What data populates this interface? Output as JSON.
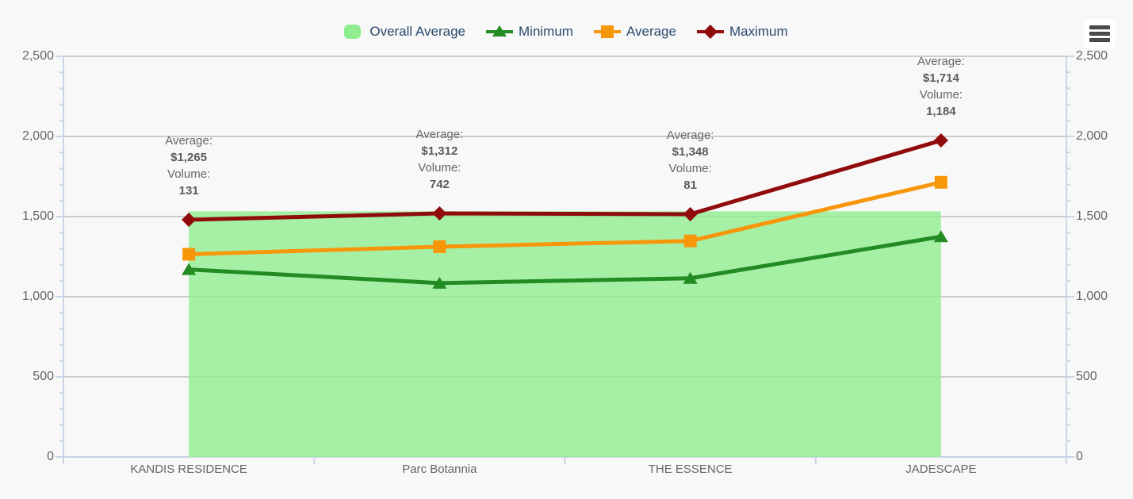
{
  "chart": {
    "legend": [
      {
        "label": "Overall Average",
        "marker": "rounded-square",
        "color": "#90EE90"
      },
      {
        "label": "Minimum",
        "marker": "triangle-line",
        "color": "#228B22"
      },
      {
        "label": "Average",
        "marker": "square-line",
        "color": "#F8960A"
      },
      {
        "label": "Maximum",
        "marker": "diamond-line",
        "color": "#900C0C"
      }
    ],
    "menu_icon": "hamburger-menu-icon",
    "colors": {
      "background": "#f8f8f8",
      "gridline": "#cbcbcb",
      "axis": "#c9d4e7",
      "axis_label": "#666666",
      "legend_text": "#274a6d",
      "annotation_text": "#666666"
    }
  },
  "chart_data": {
    "type": "line",
    "title": "",
    "categories": [
      "KANDIS RESIDENCE",
      "Parc Botannia",
      "THE ESSENCE",
      "JADESCAPE"
    ],
    "series": [
      {
        "name": "Overall Average",
        "type": "area-band",
        "values": [
          1533,
          1533,
          1533,
          1533
        ],
        "color": "#90EE90",
        "fill_opacity": 0.8
      },
      {
        "name": "Minimum",
        "type": "line",
        "marker": "triangle",
        "values": [
          1170,
          1085,
          1115,
          1375
        ],
        "color": "#228B22"
      },
      {
        "name": "Average",
        "type": "line",
        "marker": "square",
        "values": [
          1265,
          1312,
          1348,
          1714
        ],
        "color": "#F8960A"
      },
      {
        "name": "Maximum",
        "type": "line",
        "marker": "diamond",
        "values": [
          1480,
          1520,
          1515,
          1975
        ],
        "color": "#900C0C"
      }
    ],
    "annotations": [
      {
        "label_average": "Average:",
        "average": "$1,265",
        "label_volume": "Volume:",
        "volume": "131"
      },
      {
        "label_average": "Average:",
        "average": "$1,312",
        "label_volume": "Volume:",
        "volume": "742"
      },
      {
        "label_average": "Average:",
        "average": "$1,348",
        "label_volume": "Volume:",
        "volume": "81"
      },
      {
        "label_average": "Average:",
        "average": "$1,714",
        "label_volume": "Volume:",
        "volume": "1,184"
      }
    ],
    "yaxis": {
      "min": 0,
      "max": 2500,
      "tick_interval": 500,
      "minor_tick_interval": 100,
      "tick_labels": [
        "0",
        "500",
        "1,000",
        "1,500",
        "2,000",
        "2,500"
      ],
      "sides": [
        "left",
        "right"
      ]
    },
    "xlabel": "",
    "ylabel": "",
    "grid": true,
    "legend_position": "top"
  }
}
